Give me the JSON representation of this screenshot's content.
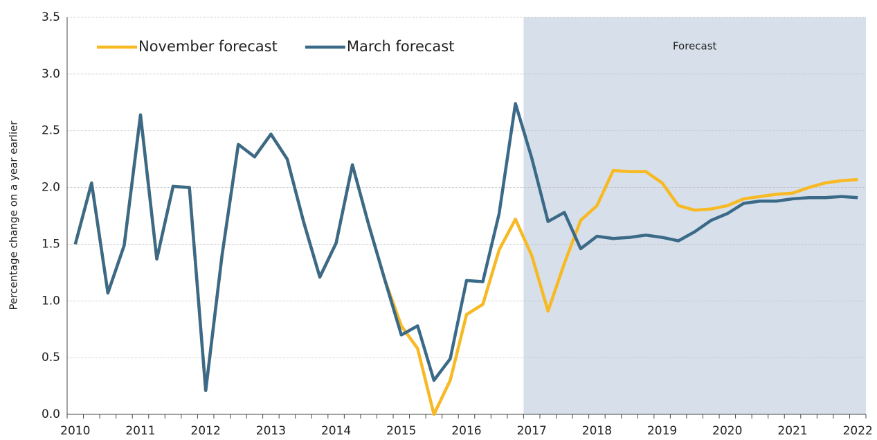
{
  "chart_data": {
    "type": "line",
    "y_label": "Percentage change on a year earlier",
    "categories": [
      "2010",
      null,
      null,
      null,
      "2011",
      null,
      null,
      null,
      "2012",
      null,
      null,
      null,
      "2013",
      null,
      null,
      null,
      "2014",
      null,
      null,
      null,
      "2015",
      null,
      null,
      null,
      "2016",
      null,
      null,
      null,
      "2017",
      null,
      null,
      null,
      "2018",
      null,
      null,
      null,
      "2019",
      null,
      null,
      null,
      "2020",
      null,
      null,
      null,
      "2021",
      null,
      null,
      null,
      "2022"
    ],
    "series": [
      {
        "name": "November forecast",
        "color": "#f7b924",
        "values": [
          1.5,
          2.04,
          1.07,
          1.49,
          2.64,
          1.37,
          2.01,
          2.0,
          0.21,
          1.4,
          2.38,
          2.27,
          2.47,
          2.25,
          1.7,
          1.21,
          1.51,
          2.2,
          1.67,
          1.18,
          0.78,
          0.58,
          0.0,
          0.3,
          0.88,
          0.97,
          1.45,
          1.72,
          1.4,
          0.91,
          1.33,
          1.71,
          1.84,
          2.15,
          2.14,
          2.14,
          2.04,
          1.84,
          1.8,
          1.81,
          1.84,
          1.9,
          1.92,
          1.94,
          1.95,
          2.0,
          2.04,
          2.06,
          2.07
        ]
      },
      {
        "name": "March forecast",
        "color": "#3b6a88",
        "values": [
          1.5,
          2.04,
          1.07,
          1.49,
          2.64,
          1.37,
          2.01,
          2.0,
          0.21,
          1.4,
          2.38,
          2.27,
          2.47,
          2.25,
          1.7,
          1.21,
          1.51,
          2.2,
          1.67,
          1.18,
          0.7,
          0.78,
          0.3,
          0.49,
          1.18,
          1.17,
          1.77,
          2.74,
          2.26,
          1.7,
          1.78,
          1.46,
          1.57,
          1.55,
          1.56,
          1.58,
          1.56,
          1.53,
          1.61,
          1.71,
          1.77,
          1.86,
          1.88,
          1.88,
          1.9,
          1.91,
          1.91,
          1.92,
          1.91
        ]
      }
    ],
    "shaded_region": {
      "label": "Forecast",
      "start": 28,
      "color": "#d7e0ea"
    },
    "ylim": [
      0,
      3.5
    ],
    "yticks": [
      {
        "value": 0,
        "label": "0.0"
      },
      0.5,
      {
        "value": 1,
        "label": "1.0"
      },
      1.5,
      {
        "value": 2,
        "label": "2.0"
      },
      2.5,
      {
        "value": 3,
        "label": "3.0"
      },
      3.5
    ],
    "grid": true,
    "legend": "top-left"
  }
}
